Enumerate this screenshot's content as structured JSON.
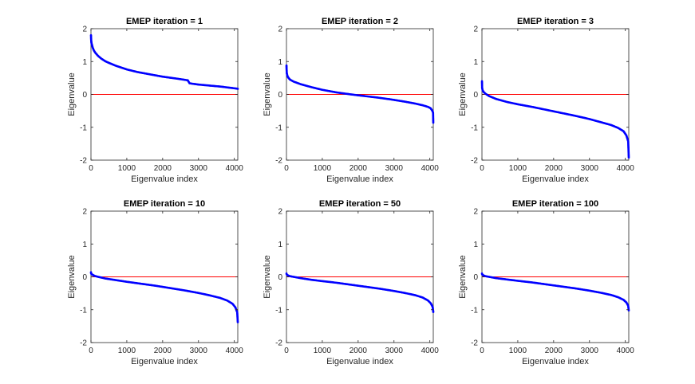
{
  "chart_data": [
    {
      "type": "scatter",
      "title": "EMEP iteration = 1",
      "xlabel": "Eigenvalue index",
      "ylabel": "Eigenvalue",
      "xlim": [
        0,
        4096
      ],
      "ylim": [
        -2,
        2
      ],
      "xticks": [
        0,
        1000,
        2000,
        3000,
        4000
      ],
      "xtick_labels": [
        "0",
        "1000",
        "2000",
        "3000",
        "4000"
      ],
      "yticks": [
        -2,
        -1,
        0,
        1,
        2
      ],
      "ytick_labels": [
        "-2",
        "-1",
        "0",
        "1",
        "2"
      ],
      "reference_line": {
        "y": 0,
        "color": "#ff0000"
      },
      "series": [
        {
          "color": "#0000ff",
          "x": [
            1,
            3,
            8,
            15,
            30,
            50,
            80,
            120,
            200,
            300,
            400,
            500,
            700,
            1000,
            1300,
            1600,
            2000,
            2400,
            2700,
            2750,
            2800,
            3000,
            3300,
            3600,
            3900,
            4050,
            4096
          ],
          "y": [
            1.8,
            1.72,
            1.62,
            1.56,
            1.5,
            1.42,
            1.34,
            1.27,
            1.17,
            1.08,
            1.01,
            0.96,
            0.87,
            0.76,
            0.68,
            0.62,
            0.54,
            0.48,
            0.43,
            0.34,
            0.33,
            0.3,
            0.27,
            0.24,
            0.2,
            0.18,
            0.17
          ]
        }
      ]
    },
    {
      "type": "scatter",
      "title": "EMEP iteration = 2",
      "xlabel": "Eigenvalue index",
      "ylabel": "Eigenvalue",
      "xlim": [
        0,
        4096
      ],
      "ylim": [
        -2,
        2
      ],
      "xticks": [
        0,
        1000,
        2000,
        3000,
        4000
      ],
      "xtick_labels": [
        "0",
        "1000",
        "2000",
        "3000",
        "4000"
      ],
      "yticks": [
        -2,
        -1,
        0,
        1,
        2
      ],
      "ytick_labels": [
        "-2",
        "-1",
        "0",
        "1",
        "2"
      ],
      "reference_line": {
        "y": 0,
        "color": "#ff0000"
      },
      "series": [
        {
          "color": "#0000ff",
          "x": [
            1,
            3,
            10,
            30,
            60,
            100,
            200,
            400,
            700,
            1000,
            1400,
            1800,
            2100,
            2500,
            2900,
            3300,
            3600,
            3800,
            3950,
            4020,
            4060,
            4090,
            4096
          ],
          "y": [
            0.88,
            0.78,
            0.64,
            0.55,
            0.5,
            0.45,
            0.39,
            0.31,
            0.22,
            0.14,
            0.06,
            0.0,
            -0.04,
            -0.09,
            -0.15,
            -0.22,
            -0.28,
            -0.33,
            -0.38,
            -0.42,
            -0.48,
            -0.55,
            -0.86
          ]
        }
      ]
    },
    {
      "type": "scatter",
      "title": "EMEP iteration = 3",
      "xlabel": "Eigenvalue index",
      "ylabel": "Eigenvalue",
      "xlim": [
        0,
        4096
      ],
      "ylim": [
        -2,
        2
      ],
      "xticks": [
        0,
        1000,
        2000,
        3000,
        4000
      ],
      "xtick_labels": [
        "0",
        "1000",
        "2000",
        "3000",
        "4000"
      ],
      "yticks": [
        -2,
        -1,
        0,
        1,
        2
      ],
      "ytick_labels": [
        "-2",
        "-1",
        "0",
        "1",
        "2"
      ],
      "reference_line": {
        "y": 0,
        "color": "#ff0000"
      },
      "series": [
        {
          "color": "#0000ff",
          "x": [
            1,
            5,
            20,
            50,
            100,
            200,
            400,
            700,
            1000,
            1400,
            1800,
            2200,
            2600,
            3000,
            3300,
            3600,
            3800,
            3950,
            4030,
            4080,
            4096
          ],
          "y": [
            0.4,
            0.2,
            0.12,
            0.07,
            0.02,
            -0.05,
            -0.14,
            -0.23,
            -0.3,
            -0.38,
            -0.47,
            -0.56,
            -0.65,
            -0.75,
            -0.84,
            -0.93,
            -1.02,
            -1.12,
            -1.25,
            -1.43,
            -1.92
          ]
        }
      ]
    },
    {
      "type": "scatter",
      "title": "EMEP iteration = 10",
      "xlabel": "Eigenvalue index",
      "ylabel": "Eigenvalue",
      "xlim": [
        0,
        4096
      ],
      "ylim": [
        -2,
        2
      ],
      "xticks": [
        0,
        1000,
        2000,
        3000,
        4000
      ],
      "xtick_labels": [
        "0",
        "1000",
        "2000",
        "3000",
        "4000"
      ],
      "yticks": [
        -2,
        -1,
        0,
        1,
        2
      ],
      "ytick_labels": [
        "-2",
        "-1",
        "0",
        "1",
        "2"
      ],
      "reference_line": {
        "y": 0,
        "color": "#ff0000"
      },
      "series": [
        {
          "color": "#0000ff",
          "x": [
            1,
            5,
            20,
            50,
            100,
            200,
            400,
            700,
            1000,
            1400,
            1800,
            2200,
            2600,
            3000,
            3300,
            3600,
            3800,
            3950,
            4030,
            4080,
            4096
          ],
          "y": [
            0.14,
            0.1,
            0.08,
            0.06,
            0.03,
            0.0,
            -0.05,
            -0.1,
            -0.15,
            -0.21,
            -0.27,
            -0.34,
            -0.41,
            -0.49,
            -0.56,
            -0.64,
            -0.72,
            -0.82,
            -0.93,
            -1.08,
            -1.38
          ]
        }
      ]
    },
    {
      "type": "scatter",
      "title": "EMEP iteration = 50",
      "xlabel": "Eigenvalue index",
      "ylabel": "Eigenvalue",
      "xlim": [
        0,
        4096
      ],
      "ylim": [
        -2,
        2
      ],
      "xticks": [
        0,
        1000,
        2000,
        3000,
        4000
      ],
      "xtick_labels": [
        "0",
        "1000",
        "2000",
        "3000",
        "4000"
      ],
      "yticks": [
        -2,
        -1,
        0,
        1,
        2
      ],
      "ytick_labels": [
        "-2",
        "-1",
        "0",
        "1",
        "2"
      ],
      "reference_line": {
        "y": 0,
        "color": "#ff0000"
      },
      "series": [
        {
          "color": "#0000ff",
          "x": [
            1,
            5,
            20,
            50,
            100,
            200,
            400,
            700,
            1000,
            1400,
            1800,
            2200,
            2600,
            3000,
            3300,
            3600,
            3800,
            3950,
            4030,
            4080,
            4096
          ],
          "y": [
            0.1,
            0.08,
            0.06,
            0.04,
            0.02,
            0.0,
            -0.04,
            -0.09,
            -0.13,
            -0.18,
            -0.24,
            -0.3,
            -0.36,
            -0.43,
            -0.49,
            -0.56,
            -0.63,
            -0.72,
            -0.81,
            -0.92,
            -1.07
          ]
        }
      ]
    },
    {
      "type": "scatter",
      "title": "EMEP iteration = 100",
      "xlabel": "Eigenvalue index",
      "ylabel": "Eigenvalue",
      "xlim": [
        0,
        4096
      ],
      "ylim": [
        -2,
        2
      ],
      "xticks": [
        0,
        1000,
        2000,
        3000,
        4000
      ],
      "xtick_labels": [
        "0",
        "1000",
        "2000",
        "3000",
        "4000"
      ],
      "yticks": [
        -2,
        -1,
        0,
        1,
        2
      ],
      "ytick_labels": [
        "-2",
        "-1",
        "0",
        "1",
        "2"
      ],
      "reference_line": {
        "y": 0,
        "color": "#ff0000"
      },
      "series": [
        {
          "color": "#0000ff",
          "x": [
            1,
            5,
            20,
            50,
            100,
            200,
            400,
            700,
            1000,
            1400,
            1800,
            2200,
            2600,
            3000,
            3300,
            3600,
            3800,
            3950,
            4030,
            4080,
            4096
          ],
          "y": [
            0.1,
            0.08,
            0.06,
            0.04,
            0.02,
            0.0,
            -0.04,
            -0.08,
            -0.12,
            -0.17,
            -0.23,
            -0.29,
            -0.35,
            -0.42,
            -0.48,
            -0.55,
            -0.62,
            -0.7,
            -0.78,
            -0.88,
            -1.02
          ]
        }
      ]
    }
  ]
}
